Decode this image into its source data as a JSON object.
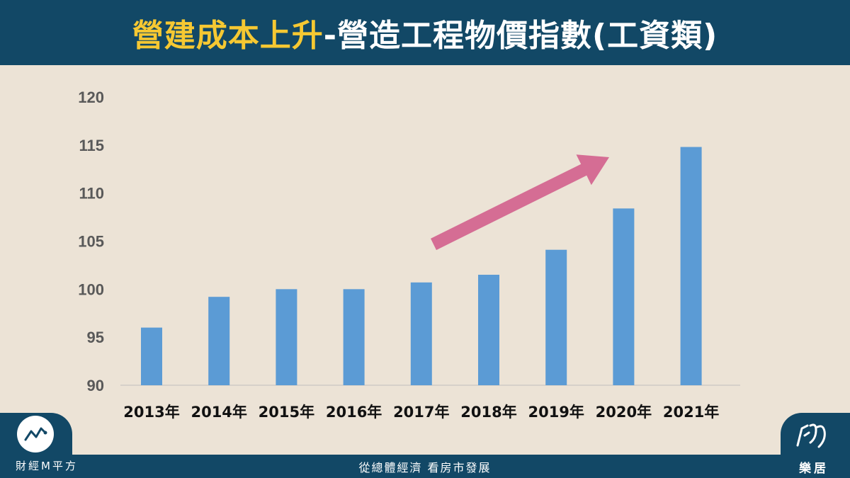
{
  "header": {
    "title_highlight": "營建成本上升",
    "title_rest": "-營造工程物價指數(工資類)"
  },
  "chart_data": {
    "type": "bar",
    "categories": [
      "2013年",
      "2014年",
      "2015年",
      "2016年",
      "2017年",
      "2018年",
      "2019年",
      "2020年",
      "2021年"
    ],
    "values": [
      96.0,
      99.2,
      100.0,
      100.0,
      100.7,
      101.5,
      104.1,
      108.4,
      114.8
    ],
    "ylim": [
      90,
      120
    ],
    "yticks": [
      "90",
      "95",
      "100",
      "105",
      "110",
      "115",
      "120"
    ],
    "grid": false,
    "bar_color": "#5b9bd5",
    "annotation": {
      "type": "arrow",
      "color": "#d56d94"
    }
  },
  "footer": {
    "left_brand": "財經M平方",
    "center_text": "從總體經濟  看房市發展",
    "right_brand": "樂居"
  },
  "colors": {
    "header_bg": "#124866",
    "background": "#ece3d6",
    "title_highlight": "#f6c832"
  }
}
